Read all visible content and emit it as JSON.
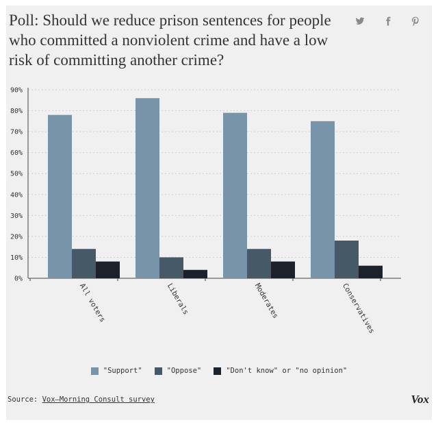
{
  "title": "Poll: Should we reduce prison sentences for people who committed a nonviolent crime and have a low risk of committing another crime?",
  "share": {
    "twitter_icon": "twitter-icon",
    "facebook_icon": "facebook-icon",
    "pinterest_icon": "pinterest-icon"
  },
  "colors": {
    "support": "#7794a8",
    "oppose": "#455966",
    "dont_know": "#1b2229",
    "background": "#f0f0f0"
  },
  "chart_data": {
    "type": "bar",
    "categories": [
      "All voters",
      "Liberals",
      "Moderates",
      "Conservatives"
    ],
    "series": [
      {
        "name": "\"Support\"",
        "values": [
          78,
          86,
          79,
          75
        ]
      },
      {
        "name": "\"Oppose\"",
        "values": [
          14,
          10,
          14,
          18
        ]
      },
      {
        "name": "\"Don't know\" or \"no opinion\"",
        "values": [
          8,
          4,
          8,
          6
        ]
      }
    ],
    "yticks": [
      "0%",
      "10%",
      "20%",
      "30%",
      "40%",
      "50%",
      "60%",
      "70%",
      "80%",
      "90%"
    ],
    "ylim": [
      0,
      90
    ],
    "grid": true,
    "legend": "bottom",
    "title": "",
    "xlabel": "",
    "ylabel": ""
  },
  "legend": {
    "support": "\"Support\"",
    "oppose": "\"Oppose\"",
    "dont_know": "\"Don't know\" or \"no opinion\""
  },
  "source": {
    "prefix": "Source: ",
    "link": "Vox–Morning Consult survey"
  },
  "logo": "Vox"
}
